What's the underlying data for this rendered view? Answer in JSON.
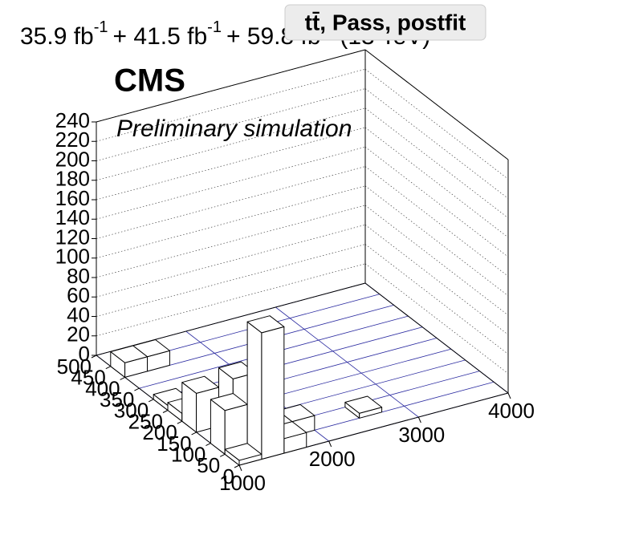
{
  "chart_data": {
    "type": "lego",
    "title": "tt̄, Pass, postfit",
    "lumi_text": [
      "35.9 fb",
      "-1",
      "+ 41.5 fb",
      "-1",
      "+ 59.8 fb",
      "-1",
      "(13 TeV)"
    ],
    "experiment": "CMS",
    "subtitle": "Preliminary simulation",
    "xlim": [
      1000,
      4000
    ],
    "xticks": [
      1000,
      2000,
      3000,
      4000
    ],
    "ylim": [
      0,
      500
    ],
    "yticks": [
      0,
      50,
      100,
      150,
      200,
      250,
      300,
      350,
      400,
      450,
      500
    ],
    "zlim": [
      0,
      240
    ],
    "zticks": [
      0,
      20,
      40,
      60,
      80,
      100,
      120,
      140,
      160,
      180,
      200,
      220,
      240
    ],
    "grid": true,
    "grid_color": "#2a2aa0",
    "bar_color": "#ffffff",
    "bars": [
      {
        "x": [
          1000,
          1250
        ],
        "y": [
          0,
          50
        ],
        "value": 5
      },
      {
        "x": [
          1250,
          1500
        ],
        "y": [
          0,
          50
        ],
        "value": 130
      },
      {
        "x": [
          1500,
          1750
        ],
        "y": [
          0,
          50
        ],
        "value": 15
      },
      {
        "x": [
          1000,
          1250
        ],
        "y": [
          50,
          100
        ],
        "value": 45
      },
      {
        "x": [
          1750,
          2000
        ],
        "y": [
          50,
          100
        ],
        "value": 15
      },
      {
        "x": [
          2500,
          2750
        ],
        "y": [
          50,
          100
        ],
        "value": 5
      },
      {
        "x": [
          1250,
          1500
        ],
        "y": [
          100,
          150
        ],
        "value": 60
      },
      {
        "x": [
          1500,
          1750
        ],
        "y": [
          100,
          150
        ],
        "value": 8
      },
      {
        "x": [
          1000,
          1250
        ],
        "y": [
          150,
          200
        ],
        "value": 40
      },
      {
        "x": [
          1000,
          1250
        ],
        "y": [
          200,
          250
        ],
        "value": 8
      },
      {
        "x": [
          1000,
          1250
        ],
        "y": [
          250,
          300
        ],
        "value": 5
      },
      {
        "x": [
          1000,
          1250
        ],
        "y": [
          400,
          450
        ],
        "value": 15
      },
      {
        "x": [
          1250,
          1500
        ],
        "y": [
          400,
          450
        ],
        "value": 15
      }
    ]
  }
}
